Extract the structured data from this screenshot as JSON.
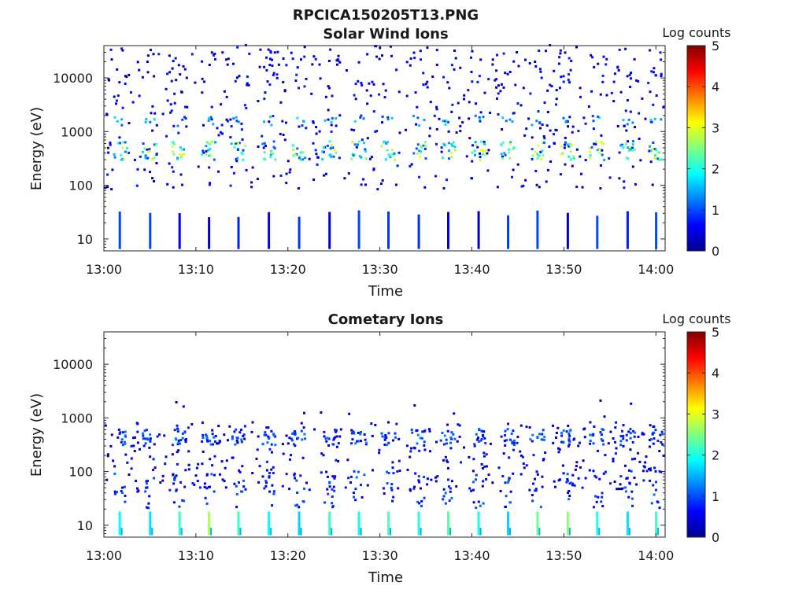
{
  "page_title": "RPCICA150205T13.PNG",
  "colorbar_scale": {
    "range": [
      0,
      5
    ],
    "ticks": [
      "0",
      "1",
      "2",
      "3",
      "4",
      "5"
    ]
  },
  "chart_data": [
    {
      "type": "heatmap",
      "title": "Solar Wind Ions",
      "xlabel": "Time",
      "ylabel": "Energy (eV)",
      "colorbar_label": "Log counts",
      "y_scale": "log",
      "ylim": [
        6,
        40000
      ],
      "xlim": [
        "13:00",
        "14:01"
      ],
      "x_ticks": [
        "13:00",
        "13:10",
        "13:20",
        "13:30",
        "13:40",
        "13:50",
        "14:00"
      ],
      "y_ticks": [
        "10",
        "100",
        "1000",
        "10000"
      ],
      "color_range": [
        0,
        5
      ],
      "scan_times_min": [
        1.6,
        4.9,
        8.1,
        11.3,
        14.5,
        17.8,
        21.1,
        24.4,
        27.6,
        30.8,
        34.1,
        37.3,
        40.6,
        43.8,
        47.0,
        50.3,
        53.5,
        56.8,
        59.9
      ],
      "peak_energy_ev": 420,
      "peak_log_counts": 2.2
    },
    {
      "type": "heatmap",
      "title": "Cometary Ions",
      "xlabel": "Time",
      "ylabel": "Energy (eV)",
      "colorbar_label": "Log counts",
      "y_scale": "log",
      "ylim": [
        6,
        40000
      ],
      "xlim": [
        "13:00",
        "14:01"
      ],
      "x_ticks": [
        "13:00",
        "13:10",
        "13:20",
        "13:30",
        "13:40",
        "13:50",
        "14:00"
      ],
      "y_ticks": [
        "10",
        "100",
        "1000",
        "10000"
      ],
      "color_range": [
        0,
        5
      ],
      "scan_times_min": [
        1.6,
        4.9,
        8.1,
        11.3,
        14.5,
        17.8,
        21.1,
        24.4,
        27.6,
        30.8,
        34.1,
        37.3,
        40.6,
        43.8,
        47.0,
        50.3,
        53.5,
        56.8,
        59.9
      ],
      "peak_energy_ev": 10,
      "peak_log_counts": 2.8
    }
  ],
  "colors": {
    "axis": "#262626",
    "background": "#ffffff"
  }
}
